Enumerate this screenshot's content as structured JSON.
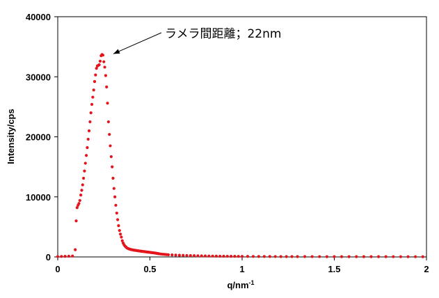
{
  "chart_data": {
    "type": "scatter",
    "title": "",
    "xlabel": "q/nm",
    "xlabel_sup": "-1",
    "ylabel": "Intensity/cps",
    "xlim": [
      0,
      2
    ],
    "ylim": [
      0,
      40000
    ],
    "x_ticks": [
      "0",
      "0.5",
      "1",
      "1.5",
      "2"
    ],
    "y_ticks": [
      "0",
      "10000",
      "20000",
      "30000",
      "40000"
    ],
    "grid": false,
    "legend": "none",
    "marker_color": "#e3141b",
    "annotation": {
      "text": "ラメラ間距離；22nm",
      "x": 0.29,
      "y": 33700
    },
    "series": [
      {
        "x": [
          0.0,
          0.02,
          0.04,
          0.06,
          0.08,
          0.095,
          0.1,
          0.105,
          0.11,
          0.115,
          0.12,
          0.125,
          0.13,
          0.135,
          0.14,
          0.145,
          0.15,
          0.155,
          0.16,
          0.165,
          0.17,
          0.175,
          0.18,
          0.185,
          0.19,
          0.195,
          0.2,
          0.205,
          0.21,
          0.215,
          0.22,
          0.225,
          0.23,
          0.235,
          0.24,
          0.245,
          0.25,
          0.255,
          0.26,
          0.265,
          0.27,
          0.275,
          0.28,
          0.285,
          0.29,
          0.295,
          0.3,
          0.305,
          0.31,
          0.315,
          0.32,
          0.325,
          0.33,
          0.335,
          0.34,
          0.345,
          0.35,
          0.355,
          0.36,
          0.365,
          0.37,
          0.375,
          0.38,
          0.385,
          0.39,
          0.395,
          0.4,
          0.405,
          0.41,
          0.415,
          0.42,
          0.425,
          0.43,
          0.435,
          0.44,
          0.445,
          0.45,
          0.455,
          0.46,
          0.465,
          0.47,
          0.475,
          0.48,
          0.485,
          0.49,
          0.495,
          0.5,
          0.505,
          0.51,
          0.515,
          0.52,
          0.525,
          0.53,
          0.535,
          0.54,
          0.545,
          0.55,
          0.56,
          0.57,
          0.58,
          0.59,
          0.6,
          0.62,
          0.64,
          0.66,
          0.68,
          0.7,
          0.72,
          0.74,
          0.76,
          0.78,
          0.8,
          0.82,
          0.84,
          0.86,
          0.88,
          0.9,
          0.92,
          0.94,
          0.96,
          0.98,
          1.0,
          1.03,
          1.06,
          1.09,
          1.12,
          1.15,
          1.18,
          1.21,
          1.24,
          1.27,
          1.3,
          1.34,
          1.38,
          1.42,
          1.46,
          1.5,
          1.54,
          1.58,
          1.62,
          1.66,
          1.7,
          1.74,
          1.78,
          1.82,
          1.86,
          1.9,
          1.94,
          1.98
        ],
        "y": [
          50,
          80,
          100,
          120,
          150,
          1200,
          6000,
          8200,
          8600,
          8900,
          9400,
          10300,
          11100,
          12000,
          13100,
          14300,
          15600,
          16900,
          18200,
          19600,
          21000,
          22500,
          24000,
          25400,
          26600,
          27800,
          29200,
          30300,
          31400,
          31800,
          31900,
          32000,
          32600,
          33500,
          33700,
          33600,
          32500,
          31600,
          30200,
          28300,
          25600,
          22500,
          20400,
          18500,
          16700,
          15000,
          13100,
          11400,
          10000,
          8600,
          7300,
          6200,
          5200,
          4400,
          3800,
          3300,
          2700,
          2300,
          2000,
          1800,
          1650,
          1500,
          1420,
          1350,
          1300,
          1250,
          1210,
          1180,
          1150,
          1120,
          1100,
          1080,
          1050,
          1020,
          1000,
          980,
          960,
          940,
          920,
          900,
          880,
          860,
          840,
          820,
          800,
          780,
          760,
          740,
          720,
          700,
          680,
          660,
          640,
          610,
          580,
          550,
          520,
          480,
          450,
          420,
          390,
          360,
          330,
          300,
          280,
          260,
          240,
          220,
          200,
          185,
          170,
          160,
          150,
          140,
          130,
          120,
          115,
          110,
          105,
          100,
          95,
          90,
          85,
          80,
          76,
          72,
          68,
          65,
          62,
          60,
          58,
          56,
          54,
          52,
          50,
          48,
          46,
          45,
          44,
          43,
          42,
          41,
          40,
          39,
          38,
          37,
          36,
          35,
          34
        ]
      }
    ]
  }
}
